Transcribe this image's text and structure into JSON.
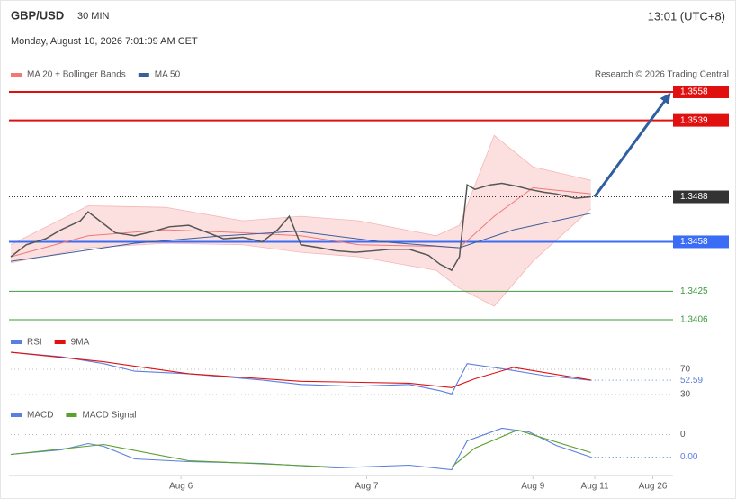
{
  "header": {
    "symbol": "GBP/USD",
    "interval": "30 MIN",
    "time": "13:01 (UTC+8)",
    "date": "Monday, August 10, 2026 7:01:09 AM CET"
  },
  "source": "Research © 2026 Trading Central",
  "chart_data": [
    {
      "type": "line",
      "xlim": [
        0,
        171
      ],
      "xticks": [
        {
          "value": 44,
          "label": "Aug 6"
        },
        {
          "value": 92,
          "label": "Aug 7"
        },
        {
          "value": 135,
          "label": "Aug 9"
        },
        {
          "value": 151,
          "label": "Aug 11"
        },
        {
          "value": 166,
          "label": "Aug 26"
        }
      ],
      "ylim": [
        1.34,
        1.3564
      ],
      "price": {
        "color": "#555555",
        "x": [
          0,
          4,
          9,
          13,
          18,
          20,
          24,
          27,
          32,
          37,
          41,
          46,
          51,
          55,
          60,
          65,
          69,
          72,
          75,
          80,
          84,
          89,
          94,
          98,
          103,
          108,
          111,
          114,
          116,
          118,
          120,
          124,
          127,
          131,
          134,
          138,
          141,
          146,
          150
        ],
        "values": [
          1.3448,
          1.3456,
          1.346,
          1.3466,
          1.3472,
          1.3478,
          1.347,
          1.3464,
          1.3462,
          1.3465,
          1.3468,
          1.3469,
          1.3464,
          1.346,
          1.3461,
          1.3458,
          1.3466,
          1.3475,
          1.3456,
          1.3454,
          1.3452,
          1.3451,
          1.3452,
          1.3453,
          1.3453,
          1.3449,
          1.3443,
          1.3439,
          1.3448,
          1.3496,
          1.3493,
          1.3496,
          1.3497,
          1.3495,
          1.3493,
          1.3491,
          1.349,
          1.3487,
          1.3488
        ]
      },
      "series": [
        {
          "name": "MA 20 + Bollinger Bands",
          "color": "#f07878",
          "x": [
            0,
            20,
            40,
            60,
            75,
            90,
            110,
            116,
            125,
            135,
            150
          ],
          "values": [
            1.3448,
            1.3462,
            1.3466,
            1.3464,
            1.3462,
            1.3456,
            1.3455,
            1.3454,
            1.3475,
            1.3494,
            1.349
          ],
          "upper": [
            1.3456,
            1.3482,
            1.3481,
            1.3472,
            1.3475,
            1.3472,
            1.3462,
            1.3469,
            1.3529,
            1.3508,
            1.3499
          ],
          "lower": [
            1.3444,
            1.3454,
            1.3457,
            1.3456,
            1.3451,
            1.3448,
            1.3439,
            1.3427,
            1.3415,
            1.3445,
            1.348
          ]
        },
        {
          "name": "MA 50",
          "color": "#3a5f9a",
          "x": [
            0,
            32,
            55,
            74,
            96,
            116,
            130,
            150
          ],
          "values": [
            1.3445,
            1.3457,
            1.3462,
            1.3465,
            1.3458,
            1.3454,
            1.3466,
            1.3477
          ]
        }
      ],
      "levels": [
        {
          "value": 1.3558,
          "color": "#e01010",
          "style": "box"
        },
        {
          "value": 1.3539,
          "color": "#e01010",
          "style": "box"
        },
        {
          "value": 1.3488,
          "color": "#333333",
          "style": "current"
        },
        {
          "value": 1.3458,
          "color": "#3b6cf5",
          "style": "box"
        },
        {
          "value": 1.3425,
          "color": "#3d9a3d",
          "style": "text"
        },
        {
          "value": 1.3406,
          "color": "#3d9a3d",
          "style": "text"
        }
      ],
      "arrow_color": "#2f5f9f"
    },
    {
      "type": "line",
      "ylim": [
        20,
        100
      ],
      "yticks": [
        70,
        30
      ],
      "series": [
        {
          "name": "RSI",
          "color": "#5b7fe0",
          "x": [
            0,
            13,
            24,
            32,
            46,
            65,
            75,
            89,
            103,
            111,
            114,
            118,
            127,
            138,
            150
          ],
          "values": [
            97,
            90,
            79,
            67,
            63,
            53,
            46,
            43,
            46,
            36,
            31,
            79,
            71,
            60,
            52.59
          ]
        },
        {
          "name": "9MA",
          "color": "#e01010",
          "x": [
            0,
            24,
            46,
            75,
            103,
            114,
            120,
            130,
            150
          ],
          "values": [
            97,
            82,
            63,
            51,
            48,
            41,
            55,
            73,
            53
          ]
        }
      ]
    },
    {
      "type": "line",
      "ylim": [
        -0.0007,
        0.0015
      ],
      "yticks": [
        {
          "value": 0.001,
          "label": "0"
        }
      ],
      "series": [
        {
          "name": "MACD",
          "color": "#5b7fe0",
          "x": [
            0,
            13,
            20,
            24,
            32,
            46,
            65,
            84,
            103,
            114,
            118,
            127,
            134,
            141,
            150
          ],
          "values": [
            0.00012,
            0.00032,
            0.0006,
            0.00048,
            -8e-05,
            -0.0002,
            -0.00028,
            -0.00048,
            -0.00036,
            -0.00056,
            0.00072,
            0.00128,
            0.00112,
            0.00052,
            0
          ],
          "value_labels": [
            null,
            null,
            null,
            null,
            null,
            null,
            null,
            null,
            null,
            null,
            null,
            null,
            null,
            null,
            "0.00"
          ]
        },
        {
          "name": "MACD Signal",
          "color": "#5aa02c",
          "x": [
            0,
            24,
            46,
            84,
            114,
            120,
            131,
            150
          ],
          "values": [
            0.00012,
            0.00056,
            -0.00016,
            -0.00044,
            -0.00044,
            0.0004,
            0.0012,
            0.0002
          ]
        }
      ]
    }
  ]
}
